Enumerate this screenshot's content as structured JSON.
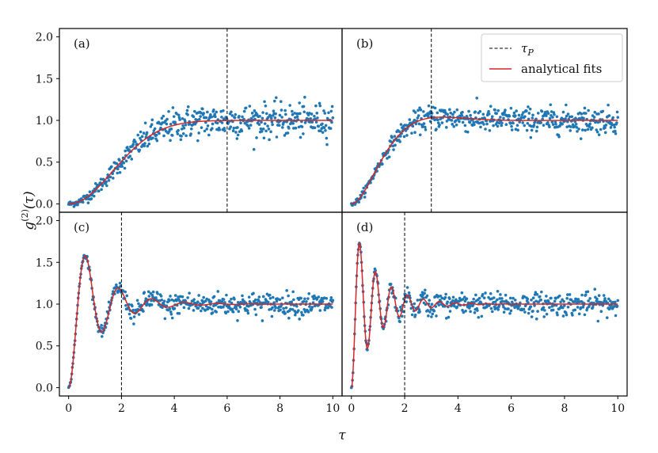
{
  "chart_data": {
    "type": "scatter",
    "xlabel": "τ",
    "ylabel": "g(2)(τ)",
    "ylabel_sup": "(2)",
    "xlim": [
      -0.35,
      10.35
    ],
    "ylim": [
      -0.1,
      2.1
    ],
    "x_ticks": [
      0,
      2,
      4,
      6,
      8,
      10
    ],
    "x_tick_labels": [
      "0",
      "2",
      "4",
      "6",
      "8",
      "10"
    ],
    "y_ticks": [
      0.0,
      0.5,
      1.0,
      1.5,
      2.0
    ],
    "y_tick_labels": [
      "0.0",
      "0.5",
      "1.0",
      "1.5",
      "2.0"
    ],
    "legend": {
      "placement": "top-right of panel (b)",
      "entries": [
        {
          "label": "τP",
          "label_sub": "P",
          "style": "dashed",
          "color": "#000000"
        },
        {
          "label": "analytical fits",
          "style": "solid",
          "color": "#d62728"
        }
      ]
    },
    "series_styles": {
      "data_points": {
        "name": "data",
        "color": "#1f77b4"
      },
      "fit": {
        "name": "analytical fits",
        "color": "#d62728"
      },
      "tau_p_line": {
        "name": "τP",
        "color": "#000000"
      }
    },
    "panels": [
      {
        "label": "(a)",
        "tau_p": 6,
        "fit_model": "overdamped",
        "decay_time": 2.0,
        "fit_points": [
          [
            0,
            0.0
          ],
          [
            0.5,
            0.03
          ],
          [
            1,
            0.12
          ],
          [
            1.5,
            0.25
          ],
          [
            2,
            0.4
          ],
          [
            2.5,
            0.56
          ],
          [
            3,
            0.71
          ],
          [
            3.5,
            0.82
          ],
          [
            4,
            0.91
          ],
          [
            4.5,
            0.96
          ],
          [
            5,
            0.99
          ],
          [
            6,
            1.0
          ],
          [
            7,
            1.0
          ],
          [
            8,
            1.0
          ],
          [
            10,
            1.0
          ]
        ],
        "noise_grows_with_tau": true
      },
      {
        "label": "(b)",
        "tau_p": 3,
        "fit_model": "slight_overshoot",
        "peak": 1.08,
        "fit_points": [
          [
            0,
            0.0
          ],
          [
            0.5,
            0.04
          ],
          [
            1,
            0.2
          ],
          [
            1.5,
            0.48
          ],
          [
            2,
            0.8
          ],
          [
            2.5,
            1.0
          ],
          [
            3,
            1.08
          ],
          [
            3.5,
            1.07
          ],
          [
            4,
            1.04
          ],
          [
            5,
            1.01
          ],
          [
            6,
            1.0
          ],
          [
            8,
            1.0
          ],
          [
            10,
            1.0
          ]
        ],
        "noise_grows_with_tau": true
      },
      {
        "label": "(c)",
        "tau_p": 2,
        "fit_model": "damped_oscillation",
        "oscillation_period": 1.25,
        "peaks": [
          [
            0.62,
            1.62
          ],
          [
            1.85,
            1.25
          ],
          [
            3.1,
            1.08
          ]
        ],
        "trough": [
          1.25,
          0.6
        ],
        "noise_grows_with_tau": true
      },
      {
        "label": "(d)",
        "tau_p": 2,
        "fit_model": "damped_oscillation",
        "oscillation_period": 0.6,
        "peaks": [
          [
            0.3,
            1.8
          ],
          [
            0.9,
            1.47
          ],
          [
            1.5,
            1.3
          ],
          [
            2.1,
            1.2
          ]
        ],
        "trough": [
          0.6,
          0.4
        ],
        "noise_grows_with_tau": true
      }
    ]
  }
}
